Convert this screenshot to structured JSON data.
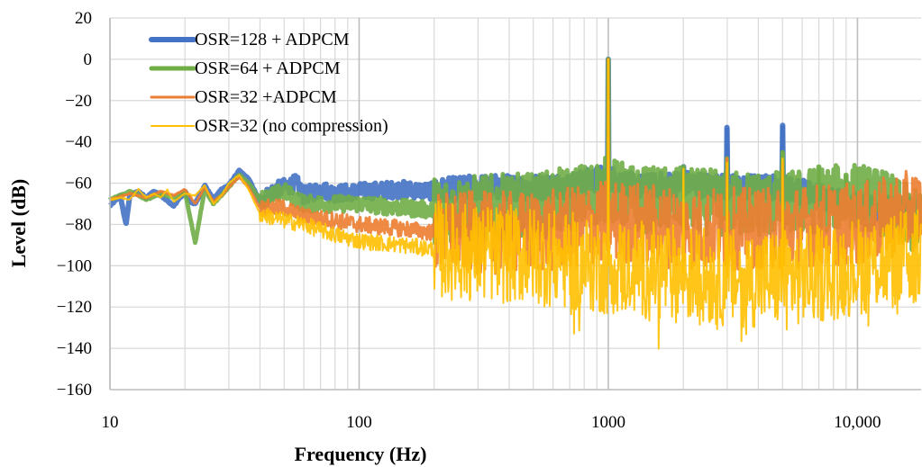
{
  "chart_data": {
    "type": "line",
    "title": "",
    "xlabel": "Frequency (Hz)",
    "ylabel": "Level (dB)",
    "xscale": "log",
    "xlim": [
      10,
      18000
    ],
    "ylim": [
      -160,
      20
    ],
    "grid": true,
    "legend_position": "top-left",
    "xticks": [
      {
        "value": 10,
        "label": "10"
      },
      {
        "value": 100,
        "label": "100"
      },
      {
        "value": 1000,
        "label": "1000"
      },
      {
        "value": 10000,
        "label": "10,000"
      }
    ],
    "yticks": [
      {
        "value": 20,
        "label": "20"
      },
      {
        "value": 0,
        "label": "0"
      },
      {
        "value": -20,
        "label": "−20"
      },
      {
        "value": -40,
        "label": "−40"
      },
      {
        "value": -60,
        "label": "−60"
      },
      {
        "value": -80,
        "label": "−80"
      },
      {
        "value": -100,
        "label": "−100"
      },
      {
        "value": -120,
        "label": "−120"
      },
      {
        "value": -140,
        "label": "−140"
      },
      {
        "value": -160,
        "label": "−160"
      }
    ],
    "series": [
      {
        "name": "OSR=128 + ADPCM",
        "color": "#4472C4",
        "stroke": 6,
        "spikes": [
          [
            1000,
            0
          ],
          [
            2000,
            -52
          ],
          [
            3000,
            -33
          ],
          [
            5000,
            -32
          ]
        ],
        "points": [
          [
            10,
            -71
          ],
          [
            11,
            -66
          ],
          [
            11.6,
            -80
          ],
          [
            12,
            -66
          ],
          [
            13,
            -64
          ],
          [
            14,
            -67
          ],
          [
            15,
            -64
          ],
          [
            16,
            -66
          ],
          [
            18,
            -71
          ],
          [
            20,
            -64
          ],
          [
            21,
            -69
          ],
          [
            22,
            -70
          ],
          [
            24,
            -61
          ],
          [
            26,
            -68
          ],
          [
            28,
            -63
          ],
          [
            30,
            -61
          ],
          [
            33,
            -54
          ],
          [
            36,
            -58
          ],
          [
            40,
            -69
          ],
          [
            45,
            -64
          ],
          [
            50,
            -62
          ],
          [
            56,
            -60
          ],
          [
            60,
            -66
          ],
          [
            70,
            -63
          ],
          [
            80,
            -65
          ],
          [
            100,
            -64
          ],
          [
            150,
            -63
          ],
          [
            200,
            -64
          ],
          [
            300,
            -62
          ],
          [
            500,
            -62
          ],
          [
            700,
            -61
          ],
          [
            1000,
            -57
          ],
          [
            1300,
            -62
          ],
          [
            2000,
            -60
          ],
          [
            3000,
            -62
          ],
          [
            5000,
            -62
          ],
          [
            7000,
            -66
          ],
          [
            9000,
            -70
          ],
          [
            12000,
            -73
          ],
          [
            18000,
            -72
          ]
        ]
      },
      {
        "name": "OSR=64 + ADPCM",
        "color": "#70AD47",
        "stroke": 5,
        "spikes": [
          [
            1000,
            0
          ],
          [
            2000,
            -52
          ],
          [
            3000,
            -48
          ],
          [
            5000,
            -45
          ],
          [
            7000,
            -52
          ],
          [
            9000,
            -56
          ],
          [
            11000,
            -58
          ]
        ],
        "points": [
          [
            10,
            -68
          ],
          [
            12,
            -64
          ],
          [
            14,
            -68
          ],
          [
            16,
            -65
          ],
          [
            18,
            -67
          ],
          [
            20,
            -64
          ],
          [
            22,
            -89
          ],
          [
            24,
            -63
          ],
          [
            26,
            -70
          ],
          [
            28,
            -66
          ],
          [
            30,
            -62
          ],
          [
            33,
            -56
          ],
          [
            36,
            -60
          ],
          [
            40,
            -68
          ],
          [
            50,
            -64
          ],
          [
            60,
            -70
          ],
          [
            80,
            -70
          ],
          [
            100,
            -70
          ],
          [
            150,
            -72
          ],
          [
            200,
            -73
          ],
          [
            300,
            -72
          ],
          [
            500,
            -71
          ],
          [
            700,
            -68
          ],
          [
            1000,
            -63
          ],
          [
            1300,
            -68
          ],
          [
            2000,
            -68
          ],
          [
            3000,
            -70
          ],
          [
            5000,
            -70
          ],
          [
            7000,
            -68
          ],
          [
            10000,
            -66
          ],
          [
            13000,
            -70
          ],
          [
            15000,
            -75
          ],
          [
            18000,
            -80
          ]
        ]
      },
      {
        "name": "OSR=32 +ADPCM",
        "color": "#ED7D31",
        "stroke": 3,
        "spikes": [
          [
            1000,
            0
          ],
          [
            3000,
            -48
          ],
          [
            5000,
            -50
          ]
        ],
        "points": [
          [
            10,
            -68
          ],
          [
            12,
            -65
          ],
          [
            14,
            -67
          ],
          [
            16,
            -64
          ],
          [
            18,
            -66
          ],
          [
            20,
            -63
          ],
          [
            22,
            -70
          ],
          [
            24,
            -62
          ],
          [
            26,
            -69
          ],
          [
            28,
            -66
          ],
          [
            30,
            -62
          ],
          [
            33,
            -57
          ],
          [
            36,
            -62
          ],
          [
            40,
            -72
          ],
          [
            50,
            -72
          ],
          [
            60,
            -76
          ],
          [
            80,
            -78
          ],
          [
            100,
            -80
          ],
          [
            150,
            -82
          ],
          [
            200,
            -84
          ],
          [
            300,
            -84
          ],
          [
            500,
            -84
          ],
          [
            700,
            -82
          ],
          [
            1000,
            -78
          ],
          [
            1500,
            -80
          ],
          [
            2000,
            -82
          ],
          [
            3000,
            -82
          ],
          [
            5000,
            -82
          ],
          [
            7000,
            -80
          ],
          [
            10000,
            -80
          ],
          [
            13000,
            -77
          ],
          [
            18000,
            -72
          ]
        ]
      },
      {
        "name": "OSR=32 (no compression)",
        "color": "#FFC000",
        "stroke": 2,
        "spikes": [
          [
            1000,
            0
          ],
          [
            2000,
            -53
          ],
          [
            3000,
            -50
          ],
          [
            5000,
            -48
          ]
        ],
        "points": [
          [
            10,
            -68
          ],
          [
            11,
            -67
          ],
          [
            12,
            -68
          ],
          [
            13,
            -63
          ],
          [
            14,
            -67
          ],
          [
            15,
            -65
          ],
          [
            16,
            -67
          ],
          [
            17,
            -63
          ],
          [
            18,
            -69
          ],
          [
            20,
            -65
          ],
          [
            22,
            -66
          ],
          [
            24,
            -61
          ],
          [
            26,
            -70
          ],
          [
            28,
            -66
          ],
          [
            30,
            -60
          ],
          [
            33,
            -56
          ],
          [
            36,
            -63
          ],
          [
            40,
            -75
          ],
          [
            50,
            -78
          ],
          [
            60,
            -80
          ],
          [
            80,
            -85
          ],
          [
            100,
            -88
          ],
          [
            150,
            -90
          ],
          [
            200,
            -92
          ],
          [
            300,
            -94
          ],
          [
            500,
            -95
          ],
          [
            700,
            -98
          ],
          [
            1000,
            -100
          ],
          [
            1500,
            -102
          ],
          [
            2000,
            -104
          ],
          [
            3000,
            -106
          ],
          [
            5000,
            -106
          ],
          [
            7000,
            -104
          ],
          [
            10000,
            -100
          ],
          [
            13000,
            -98
          ],
          [
            18000,
            -96
          ]
        ]
      }
    ]
  }
}
